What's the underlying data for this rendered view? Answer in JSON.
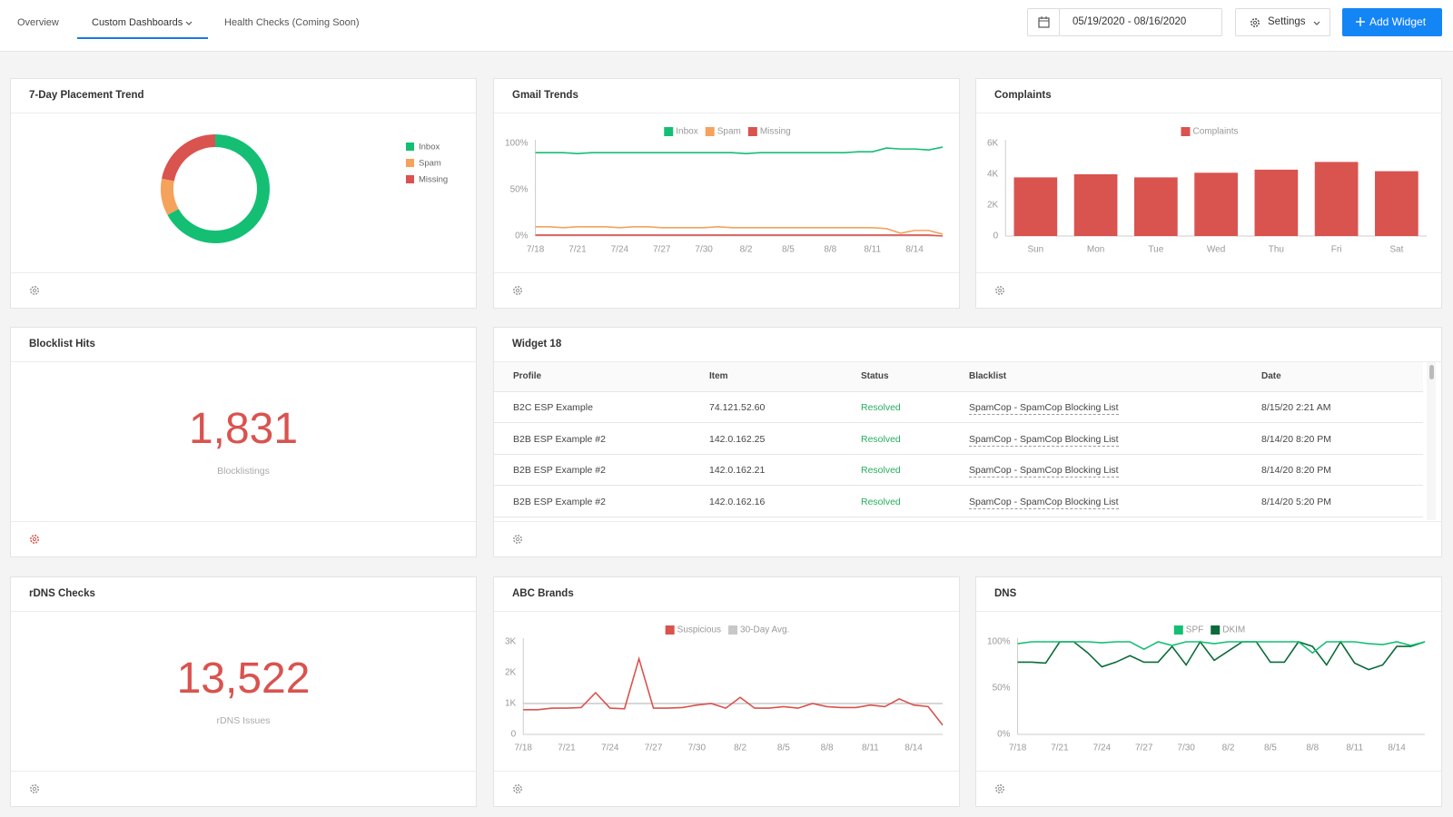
{
  "nav": {
    "tabs": [
      "Overview",
      "Custom Dashboards",
      "Health Checks (Coming Soon)"
    ],
    "date_range": "05/19/2020 - 08/16/2020",
    "settings_button": "Settings",
    "add_widget_button": "Add Widget"
  },
  "widgets": [
    {
      "title": "7-Day Placement Trend",
      "chart_data": {
        "type": "pie",
        "donut": true,
        "categories": [
          "Inbox",
          "Spam",
          "Missing"
        ],
        "values": [
          67,
          11,
          22
        ],
        "colors": [
          "#14bf74",
          "#f5a25d",
          "#d9534f"
        ],
        "legend": "right"
      }
    },
    {
      "title": "Gmail Trends",
      "chart_data": {
        "type": "line",
        "categories": [
          "7/18",
          null,
          null,
          "7/21",
          null,
          null,
          "7/24",
          null,
          null,
          "7/27",
          null,
          null,
          "7/30",
          null,
          null,
          "8/2",
          null,
          null,
          "8/5",
          null,
          null,
          "8/8",
          null,
          null,
          "8/11",
          null,
          null,
          "8/14",
          null,
          null
        ],
        "series": [
          {
            "name": "Inbox",
            "color": "#14bf74",
            "values": [
              90,
              90,
              90,
              89,
              90,
              90,
              90,
              90,
              90,
              90,
              90,
              90,
              90,
              90,
              90,
              89,
              90,
              90,
              90,
              90,
              90,
              90,
              90,
              91,
              91,
              95,
              94,
              94,
              93,
              96
            ]
          },
          {
            "name": "Spam",
            "color": "#f5a25d",
            "values": [
              10,
              10,
              9,
              10,
              10,
              10,
              9,
              10,
              10,
              9,
              9,
              9,
              9,
              10,
              9,
              9,
              9,
              9,
              9,
              9,
              9,
              9,
              9,
              9,
              9,
              8,
              3,
              6,
              6,
              2
            ]
          },
          {
            "name": "Missing",
            "color": "#d9534f",
            "values": [
              1,
              1,
              1,
              1,
              1,
              1,
              1,
              1,
              1,
              1,
              1,
              1,
              1,
              1,
              1,
              1,
              1,
              1,
              1,
              1,
              1,
              1,
              1,
              1,
              1,
              1,
              1,
              1,
              1,
              0
            ]
          }
        ],
        "ylim": [
          0,
          100
        ],
        "yticks": [
          {
            "value": 0,
            "label": "0%"
          },
          {
            "value": 50,
            "label": "50%"
          },
          {
            "value": 100,
            "label": "100%"
          }
        ],
        "legend": "top"
      }
    },
    {
      "title": "Complaints",
      "chart_data": {
        "type": "bar",
        "categories": [
          "Sun",
          "Mon",
          "Tue",
          "Wed",
          "Thu",
          "Fri",
          "Sat"
        ],
        "series": [
          {
            "name": "Complaints",
            "color": "#d9534f",
            "values": [
              3800,
              4000,
              3800,
              4100,
              4300,
              4800,
              4200
            ]
          }
        ],
        "ylim": [
          0,
          6000
        ],
        "yticks": [
          0,
          {
            "value": 2000,
            "label": "2K"
          },
          {
            "value": 4000,
            "label": "4K"
          },
          {
            "value": 6000,
            "label": "6K"
          }
        ],
        "legend": "top"
      }
    },
    {
      "title": "Blocklist Hits",
      "kpi": {
        "value": "1,831",
        "label": "Blocklistings"
      }
    },
    {
      "title": "Widget 18",
      "table": {
        "columns": [
          "Profile",
          "Item",
          "Status",
          "Blacklist",
          "Date"
        ],
        "rows": [
          [
            "B2C ESP Example",
            "74.121.52.60",
            "Resolved",
            "SpamCop - SpamCop Blocking List",
            "8/15/20 2:21 AM"
          ],
          [
            "B2B ESP Example #2",
            "142.0.162.25",
            "Resolved",
            "SpamCop - SpamCop Blocking List",
            "8/14/20 8:20 PM"
          ],
          [
            "B2B ESP Example #2",
            "142.0.162.21",
            "Resolved",
            "SpamCop - SpamCop Blocking List",
            "8/14/20 8:20 PM"
          ],
          [
            "B2B ESP Example #2",
            "142.0.162.16",
            "Resolved",
            "SpamCop - SpamCop Blocking List",
            "8/14/20 5:20 PM"
          ]
        ]
      }
    },
    {
      "title": "rDNS Checks",
      "kpi": {
        "value": "13,522",
        "label": "rDNS Issues"
      }
    },
    {
      "title": "ABC Brands",
      "chart_data": {
        "type": "line",
        "categories": [
          "7/18",
          null,
          null,
          "7/21",
          null,
          null,
          "7/24",
          null,
          null,
          "7/27",
          null,
          null,
          "7/30",
          null,
          null,
          "8/2",
          null,
          null,
          "8/5",
          null,
          null,
          "8/8",
          null,
          null,
          "8/11",
          null,
          null,
          "8/14",
          null,
          null
        ],
        "series": [
          {
            "name": "Suspicious",
            "color": "#d9534f",
            "values": [
              800,
              800,
              850,
              850,
              870,
              1350,
              850,
              830,
              2450,
              850,
              850,
              870,
              950,
              1000,
              850,
              1200,
              850,
              850,
              900,
              850,
              1000,
              900,
              870,
              870,
              950,
              900,
              1150,
              950,
              900,
              300
            ]
          },
          {
            "name": "30-Day Avg.",
            "color": "#c8c8c8",
            "values": [
              1000,
              1000,
              1000,
              1000,
              1000,
              1000,
              1000,
              1000,
              1000,
              1000,
              1000,
              1000,
              1000,
              1000,
              1000,
              1000,
              1000,
              1000,
              1000,
              1000,
              1000,
              1000,
              1000,
              1000,
              1000,
              1000,
              1000,
              1000,
              1000,
              1000
            ]
          }
        ],
        "ylim": [
          0,
          3000
        ],
        "yticks": [
          0,
          {
            "value": 1000,
            "label": "1K"
          },
          {
            "value": 2000,
            "label": "2K"
          },
          {
            "value": 3000,
            "label": "3K"
          }
        ],
        "legend": "top"
      }
    },
    {
      "title": "DNS",
      "chart_data": {
        "type": "line",
        "categories": [
          "7/18",
          null,
          null,
          "7/21",
          null,
          null,
          "7/24",
          null,
          null,
          "7/27",
          null,
          null,
          "7/30",
          null,
          null,
          "8/2",
          null,
          null,
          "8/5",
          null,
          null,
          "8/8",
          null,
          null,
          "8/11",
          null,
          null,
          "8/14",
          null,
          null
        ],
        "series": [
          {
            "name": "SPF",
            "color": "#14bf74",
            "values": [
              98,
              100,
              100,
              100,
              100,
              100,
              99,
              100,
              100,
              92,
              100,
              96,
              100,
              100,
              98,
              100,
              100,
              100,
              100,
              100,
              100,
              88,
              100,
              100,
              100,
              98,
              97,
              100,
              96,
              100
            ]
          },
          {
            "name": "DKIM",
            "color": "#0b6b3a",
            "values": [
              78,
              78,
              77,
              100,
              100,
              88,
              73,
              78,
              85,
              78,
              78,
              95,
              75,
              100,
              80,
              90,
              100,
              100,
              78,
              78,
              100,
              95,
              75,
              100,
              77,
              70,
              75,
              95,
              95,
              100
            ]
          }
        ],
        "ylim": [
          0,
          100
        ],
        "yticks": [
          {
            "value": 0,
            "label": "0%"
          },
          {
            "value": 50,
            "label": "50%"
          },
          {
            "value": 100,
            "label": "100%"
          }
        ],
        "legend": "top"
      }
    }
  ]
}
